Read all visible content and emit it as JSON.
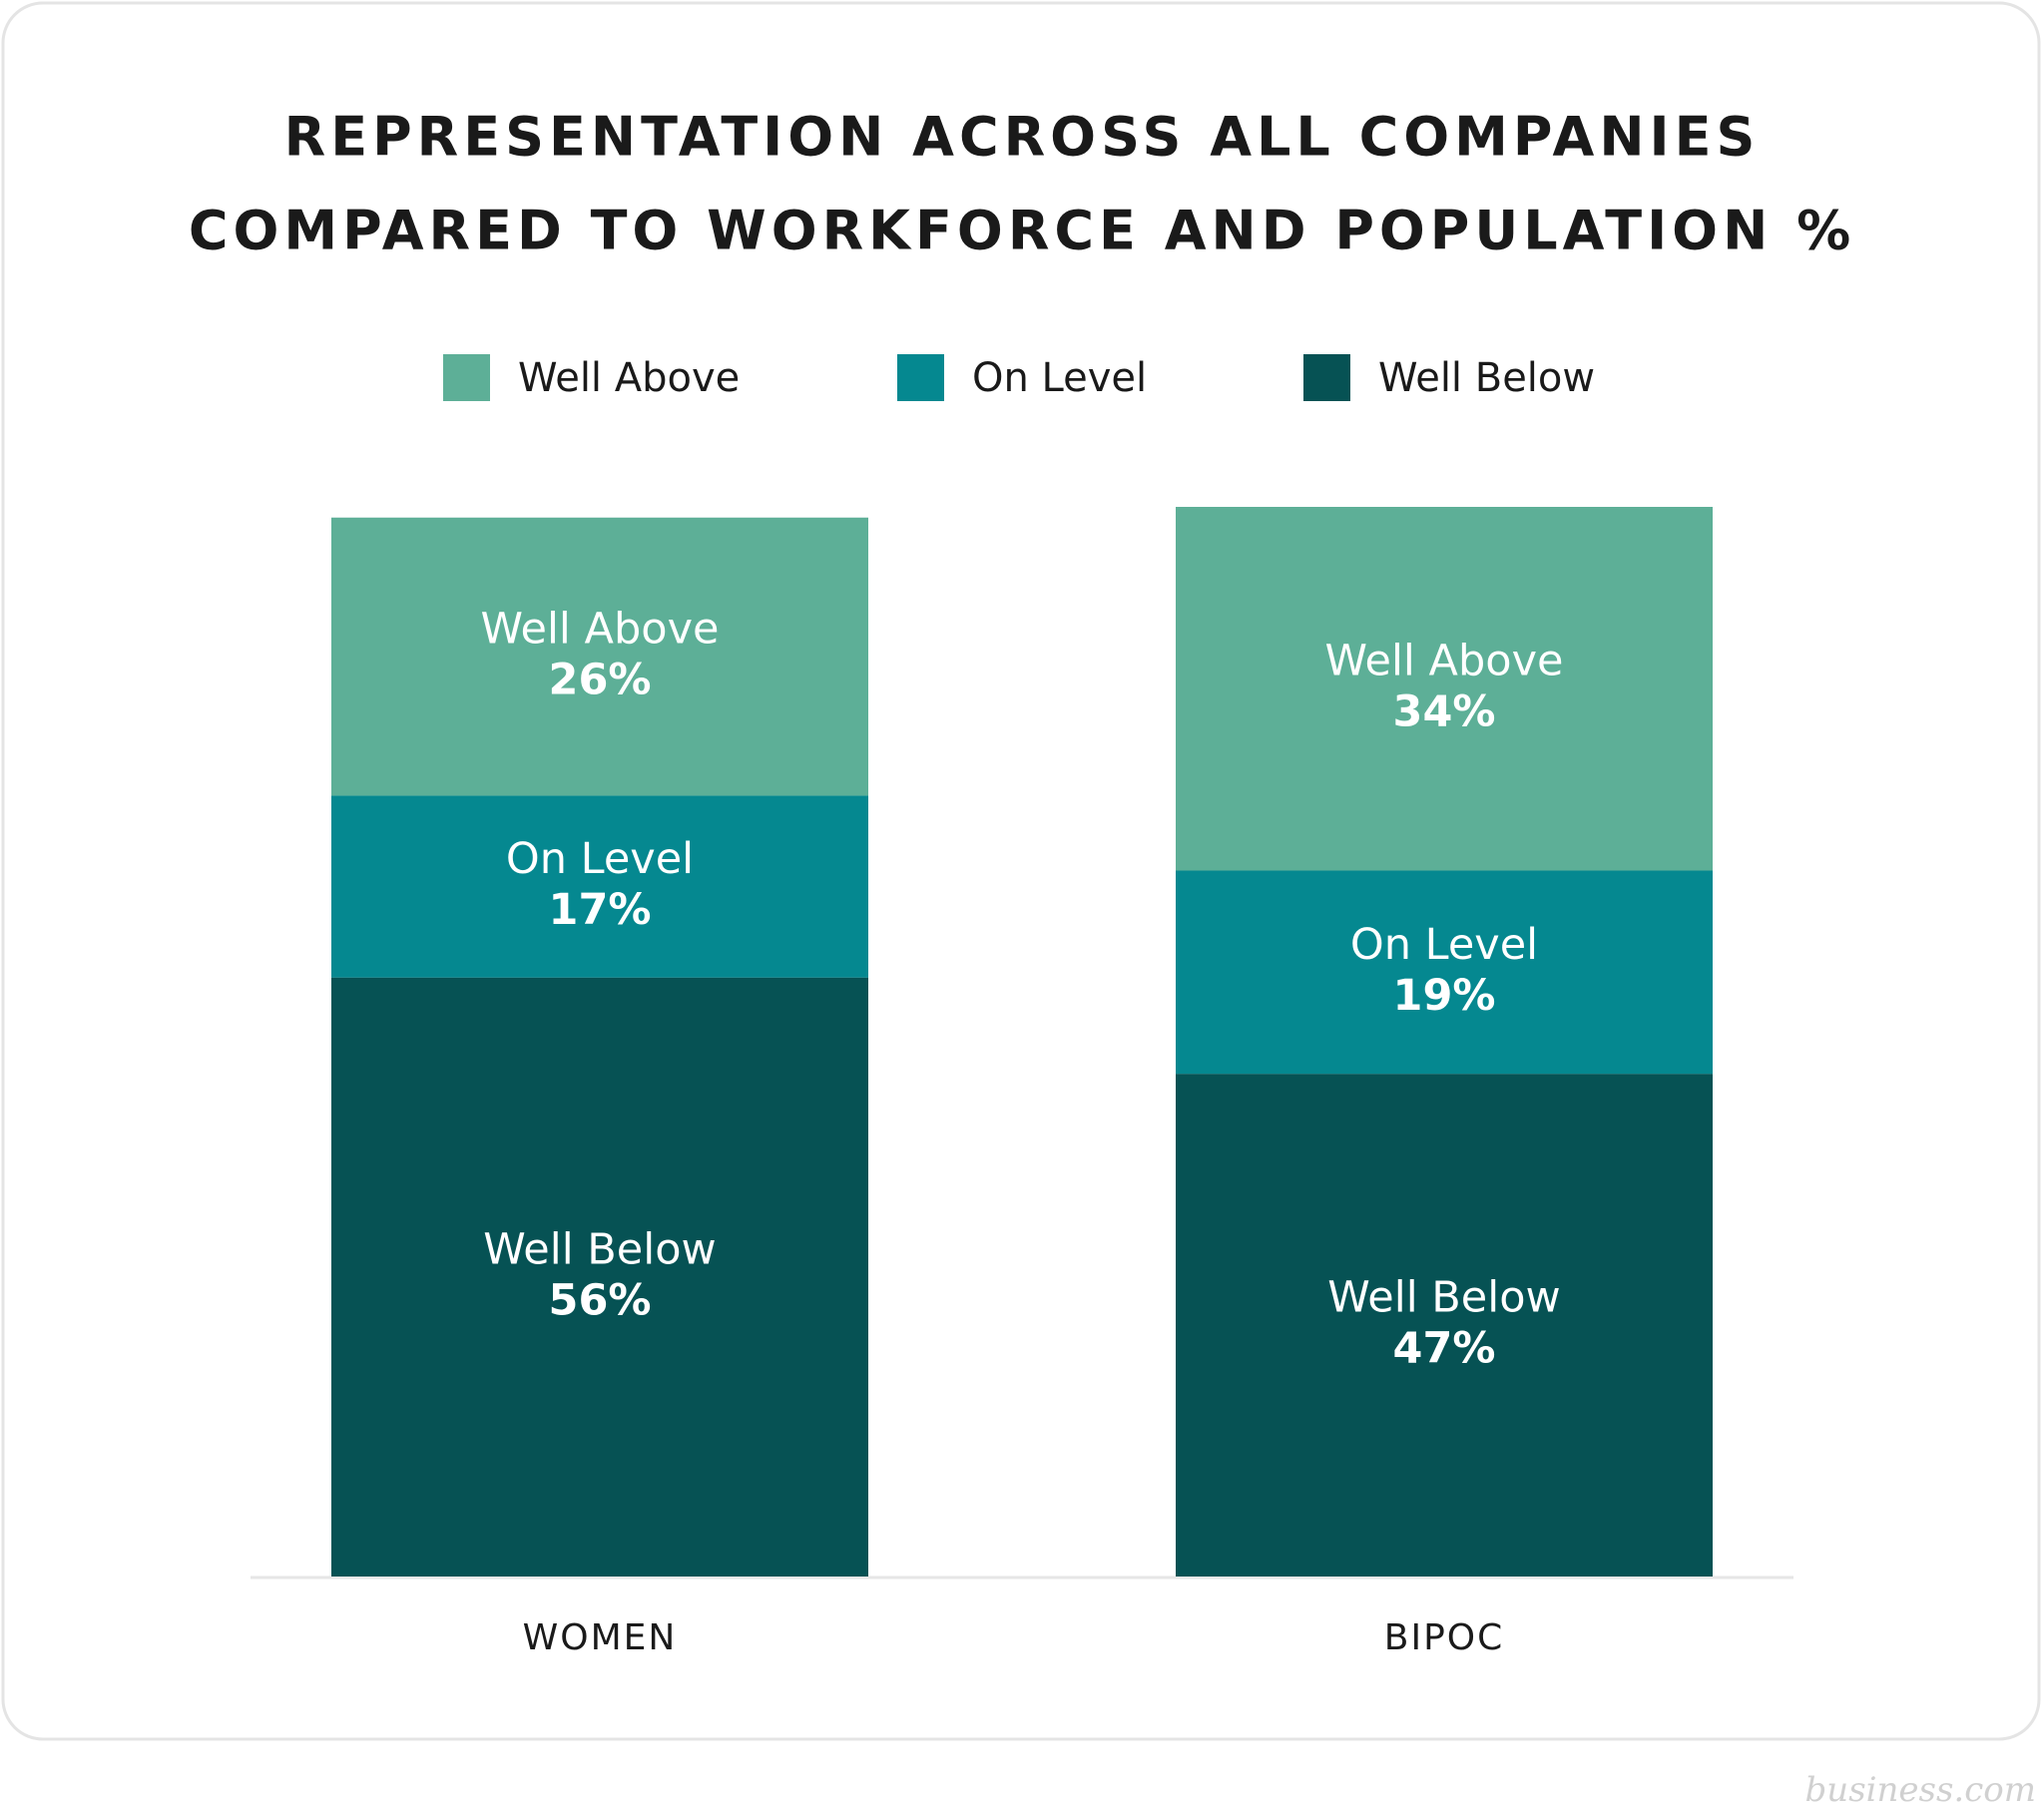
{
  "chart_data": {
    "type": "stacked-bar",
    "title": [
      "REPRESENTATION ACROSS ALL COMPANIES",
      "COMPARED TO WORKFORCE AND POPULATION %"
    ],
    "categories": [
      "WOMEN",
      "BIPOC"
    ],
    "series": [
      {
        "name": "Well Below",
        "color": "#065254",
        "values": [
          56,
          47
        ],
        "value_labels": [
          "56%",
          "47%"
        ]
      },
      {
        "name": "On Level",
        "color": "#058890",
        "values": [
          17,
          19
        ],
        "value_labels": [
          "17%",
          "19%"
        ]
      },
      {
        "name": "Well Above",
        "color": "#5daf97",
        "values": [
          26,
          34
        ],
        "value_labels": [
          "26%",
          "34%"
        ]
      }
    ],
    "legend_order": [
      2,
      1,
      0
    ],
    "ylim": [
      0,
      100
    ],
    "legend": "top",
    "watermark": "business.com"
  }
}
